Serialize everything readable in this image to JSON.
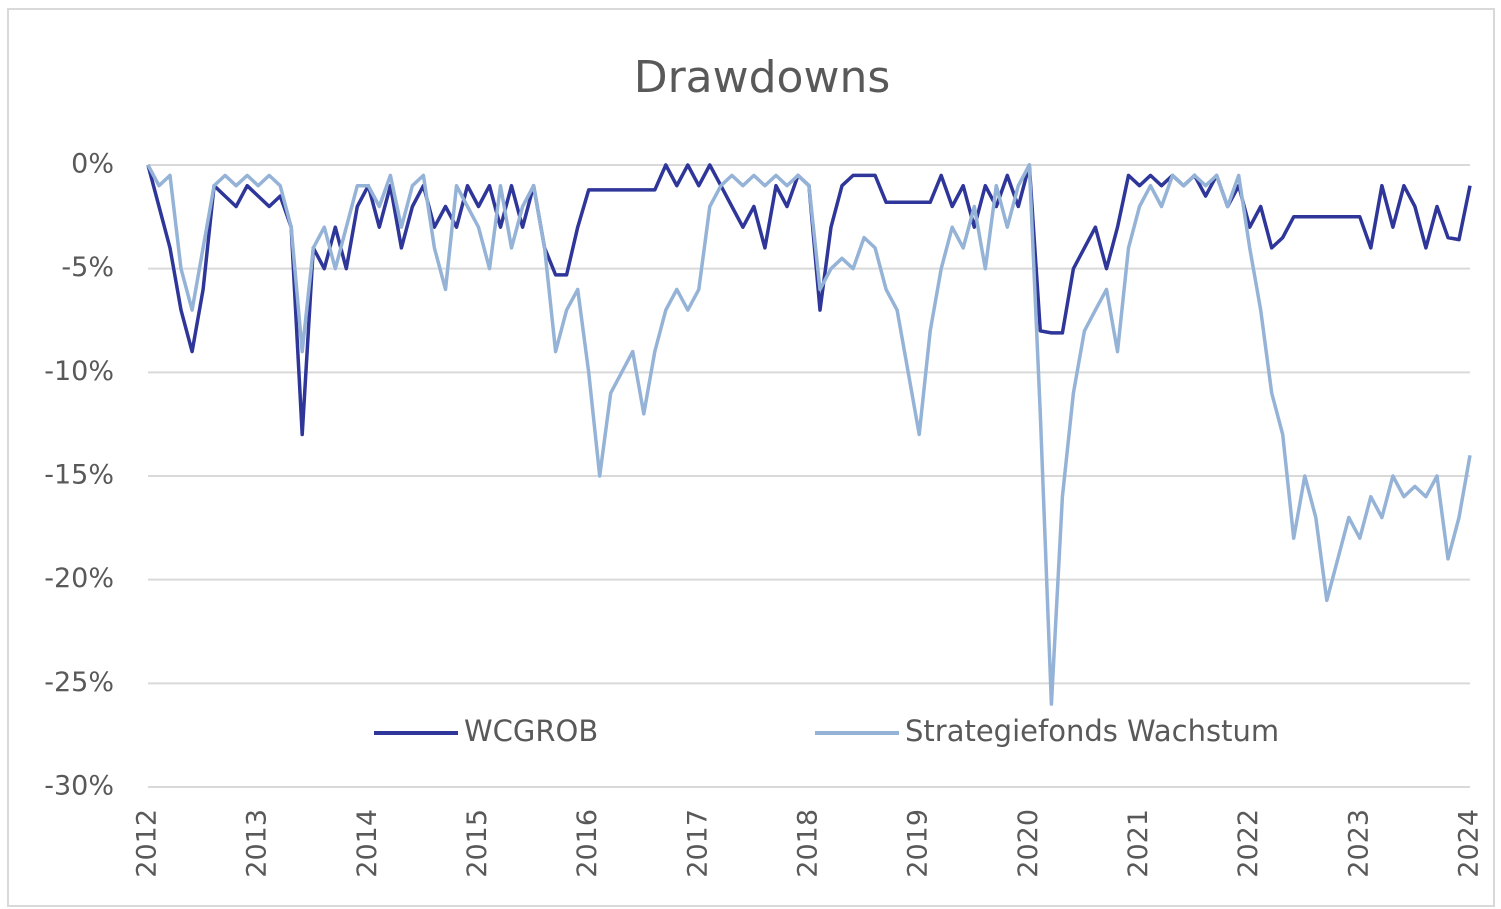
{
  "chart_data": {
    "type": "line",
    "title": "Drawdowns",
    "x": [
      2012,
      2012.1,
      2012.2,
      2012.3,
      2012.4,
      2012.5,
      2012.6,
      2012.7,
      2012.8,
      2012.9,
      2013,
      2013.1,
      2013.2,
      2013.3,
      2013.4,
      2013.5,
      2013.6,
      2013.7,
      2013.8,
      2013.9,
      2014,
      2014.1,
      2014.2,
      2014.3,
      2014.4,
      2014.5,
      2014.6,
      2014.7,
      2014.8,
      2014.9,
      2015,
      2015.1,
      2015.2,
      2015.3,
      2015.4,
      2015.5,
      2015.6,
      2015.7,
      2015.8,
      2015.9,
      2016,
      2016.1,
      2016.2,
      2016.3,
      2016.4,
      2016.5,
      2016.6,
      2016.7,
      2016.8,
      2016.9,
      2017,
      2017.1,
      2017.2,
      2017.3,
      2017.4,
      2017.5,
      2017.6,
      2017.7,
      2017.8,
      2017.9,
      2018,
      2018.1,
      2018.2,
      2018.3,
      2018.4,
      2018.5,
      2018.6,
      2018.7,
      2018.8,
      2018.9,
      2019,
      2019.1,
      2019.2,
      2019.3,
      2019.4,
      2019.5,
      2019.6,
      2019.7,
      2019.8,
      2019.9,
      2020,
      2020.1,
      2020.2,
      2020.3,
      2020.4,
      2020.5,
      2020.6,
      2020.7,
      2020.8,
      2020.9,
      2021,
      2021.1,
      2021.2,
      2021.3,
      2021.4,
      2021.5,
      2021.6,
      2021.7,
      2021.8,
      2021.9,
      2022,
      2022.1,
      2022.2,
      2022.3,
      2022.4,
      2022.5,
      2022.6,
      2022.7,
      2022.8,
      2022.9,
      2023,
      2023.1,
      2023.2,
      2023.3,
      2023.4,
      2023.5,
      2023.6,
      2023.7,
      2023.8,
      2023.9,
      2024
    ],
    "series": [
      {
        "name": "WCGROB",
        "color": "#2f3699",
        "values": [
          0,
          -2,
          -4,
          -7,
          -9,
          -6,
          -1,
          -1.5,
          -2,
          -1,
          -1.5,
          -2,
          -1.5,
          -3,
          -13,
          -4,
          -5,
          -3,
          -5,
          -2,
          -1,
          -3,
          -1,
          -4,
          -2,
          -1,
          -3,
          -2,
          -3,
          -1,
          -2,
          -1,
          -3,
          -1,
          -3,
          -1,
          -4,
          -5.3,
          -5.3,
          -3,
          -1.2,
          -1.2,
          -1.2,
          -1.2,
          -1.2,
          -1.2,
          -1.2,
          0,
          -1,
          0,
          -1,
          0,
          -1,
          -2,
          -3,
          -2,
          -4,
          -1,
          -2,
          -0.5,
          -1,
          -7,
          -3,
          -1,
          -0.5,
          -0.5,
          -0.5,
          -1.8,
          -1.8,
          -1.8,
          -1.8,
          -1.8,
          -0.5,
          -2,
          -1,
          -3,
          -1,
          -2,
          -0.5,
          -2,
          0,
          -8,
          -8.1,
          -8.1,
          -5,
          -4,
          -3,
          -5,
          -3,
          -0.5,
          -1,
          -0.5,
          -1,
          -0.5,
          -1,
          -0.5,
          -1.5,
          -0.5,
          -2,
          -1,
          -3,
          -2,
          -4,
          -3.5,
          -2.5,
          -2.5,
          -2.5,
          -2.5,
          -2.5,
          -2.5,
          -2.5,
          -4,
          -1,
          -3,
          -1,
          -2,
          -4,
          -2,
          -3.5,
          -3.6,
          -1
        ]
      },
      {
        "name": "Strategiefonds Wachstum",
        "color": "#95b3d7",
        "values": [
          0,
          -1,
          -0.5,
          -5,
          -7,
          -4,
          -1,
          -0.5,
          -1,
          -0.5,
          -1,
          -0.5,
          -1,
          -3,
          -9,
          -4,
          -3,
          -5,
          -3,
          -1,
          -1,
          -2,
          -0.5,
          -3,
          -1,
          -0.5,
          -4,
          -6,
          -1,
          -2,
          -3,
          -5,
          -1,
          -4,
          -2,
          -1,
          -4,
          -9,
          -7,
          -6,
          -10,
          -15,
          -11,
          -10,
          -9,
          -12,
          -9,
          -7,
          -6,
          -7,
          -6,
          -2,
          -1,
          -0.5,
          -1,
          -0.5,
          -1,
          -0.5,
          -1,
          -0.5,
          -1,
          -6,
          -5,
          -4.5,
          -5,
          -3.5,
          -4,
          -6,
          -7,
          -10,
          -13,
          -8,
          -5,
          -3,
          -4,
          -2,
          -5,
          -1,
          -3,
          -1,
          0,
          -12,
          -26,
          -16,
          -11,
          -8,
          -7,
          -6,
          -9,
          -4,
          -2,
          -1,
          -2,
          -0.5,
          -1,
          -0.5,
          -1,
          -0.5,
          -2,
          -0.5,
          -4,
          -7,
          -11,
          -13,
          -18,
          -15,
          -17,
          -21,
          -19,
          -17,
          -18,
          -16,
          -17,
          -15,
          -16,
          -15.5,
          -16,
          -15,
          -19,
          -17,
          -14
        ]
      }
    ],
    "xlim": [
      2012,
      2024
    ],
    "xticks": [
      2012,
      2013,
      2014,
      2015,
      2016,
      2017,
      2018,
      2019,
      2020,
      2021,
      2022,
      2023,
      2024
    ],
    "ylim": [
      -30,
      0
    ],
    "yticks": [
      {
        "value": 0,
        "label": "0%"
      },
      {
        "value": -5,
        "label": "-5%"
      },
      {
        "value": -10,
        "label": "-10%"
      },
      {
        "value": -15,
        "label": "-15%"
      },
      {
        "value": -20,
        "label": "-20%"
      },
      {
        "value": -25,
        "label": "-25%"
      },
      {
        "value": -30,
        "label": "-30%"
      }
    ],
    "grid": true,
    "legend": "lower center"
  }
}
